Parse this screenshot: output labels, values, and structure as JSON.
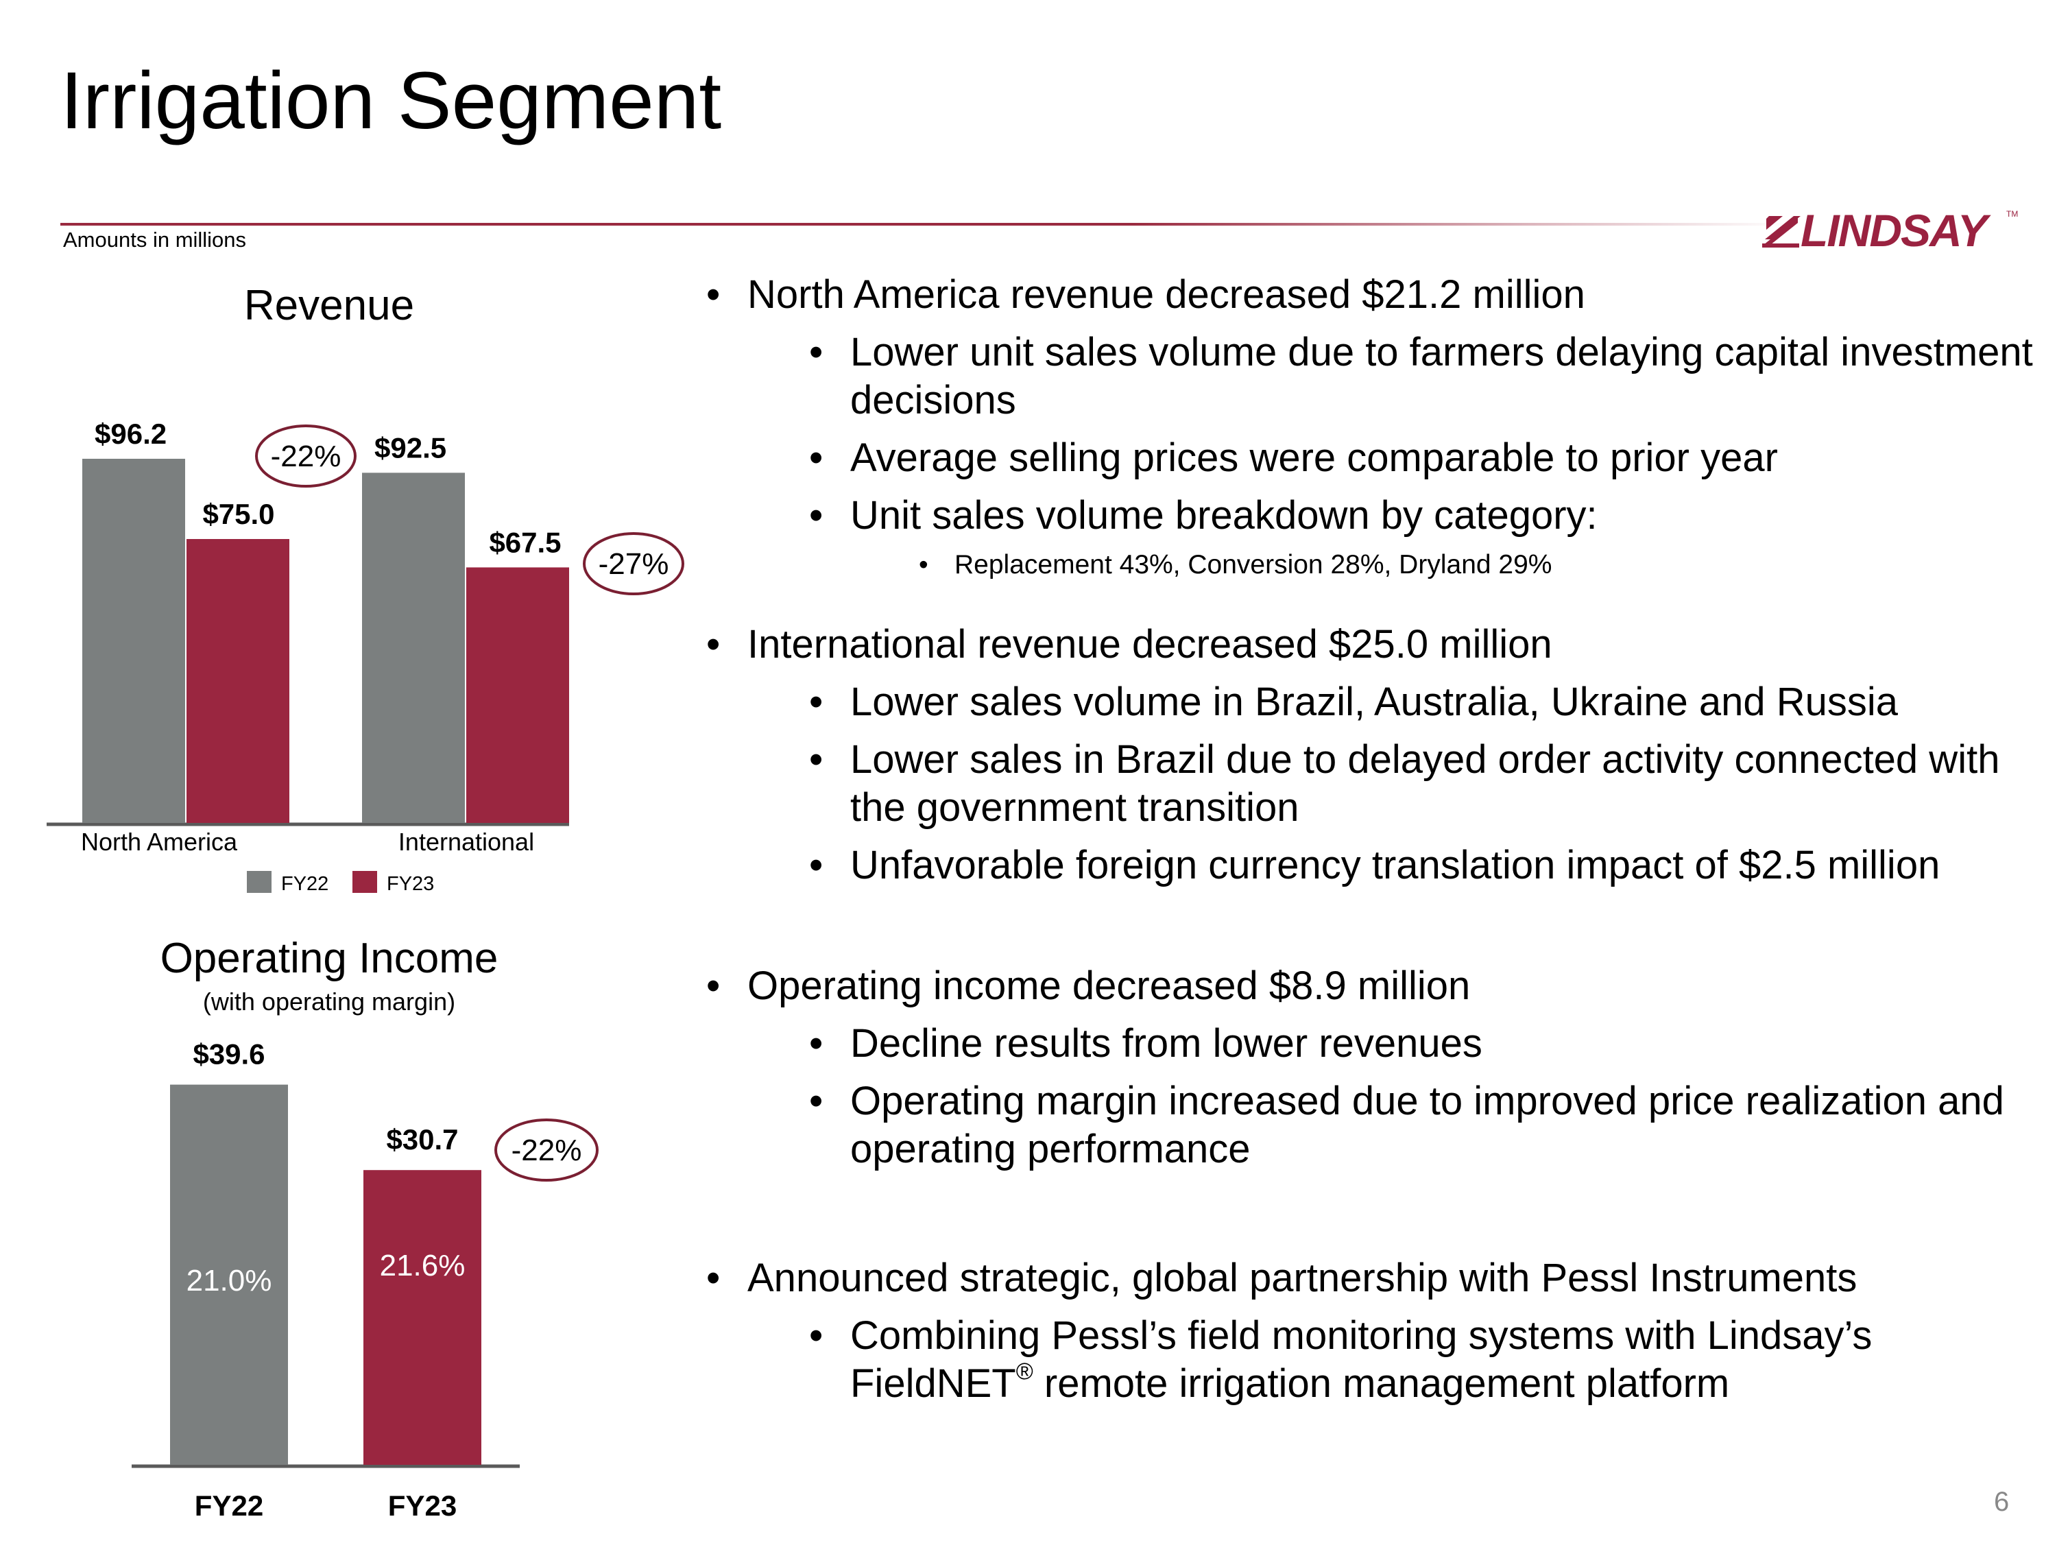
{
  "page": {
    "title": "Irrigation Segment",
    "subnote": "Amounts in millions",
    "logo_text": "LINDSAY",
    "logo_tm": "TM",
    "page_number": "6"
  },
  "colors": {
    "fy22": "#7b7f7f",
    "fy23": "#9a2640",
    "accent": "#9a2b40",
    "circle": "#7a1f32"
  },
  "chart_data": [
    {
      "type": "bar",
      "title": "Revenue",
      "categories": [
        "North America",
        "International"
      ],
      "series": [
        {
          "name": "FY22",
          "values": [
            96.2,
            92.5
          ],
          "labels": [
            "$96.2",
            "$92.5"
          ]
        },
        {
          "name": "FY23",
          "values": [
            75.0,
            67.5
          ],
          "labels": [
            "$75.0",
            "$67.5"
          ]
        }
      ],
      "changes": [
        "-22%",
        "-27%"
      ],
      "legend": [
        "FY22",
        "FY23"
      ],
      "ylim": [
        0,
        100
      ],
      "xlabel": "",
      "ylabel": ""
    },
    {
      "type": "bar",
      "title": "Operating Income",
      "subtitle": "(with operating margin)",
      "categories": [
        "FY22",
        "FY23"
      ],
      "values": [
        39.6,
        30.7
      ],
      "labels": [
        "$39.6",
        "$30.7"
      ],
      "margins": [
        "21.0%",
        "21.6%"
      ],
      "change": "-22%",
      "ylim": [
        0,
        40
      ],
      "xlabel": "",
      "ylabel": ""
    }
  ],
  "bullets": {
    "na": {
      "main": "North America revenue decreased $21.2 million",
      "sub1": "Lower unit sales volume due to farmers delaying capital investment decisions",
      "sub2": "Average selling prices were comparable to prior year",
      "sub3": "Unit sales volume breakdown by category:",
      "sub3a": "Replacement 43%, Conversion 28%, Dryland 29%"
    },
    "intl": {
      "main": "International revenue decreased $25.0 million",
      "sub1": "Lower sales volume in Brazil, Australia, Ukraine and Russia",
      "sub2": "Lower sales in Brazil due to delayed order activity connected with the government transition",
      "sub3": "Unfavorable foreign currency translation impact of $2.5 million"
    },
    "opinc": {
      "main": "Operating income decreased $8.9 million",
      "sub1": "Decline results from lower revenues",
      "sub2": "Operating margin increased due to improved price realization and operating performance"
    },
    "pessl": {
      "main": "Announced strategic, global partnership with Pessl Instruments",
      "sub1_a": "Combining Pessl’s field monitoring systems with Lindsay’s FieldNET",
      "sub1_reg": "®",
      "sub1_b": " remote irrigation management platform"
    }
  }
}
